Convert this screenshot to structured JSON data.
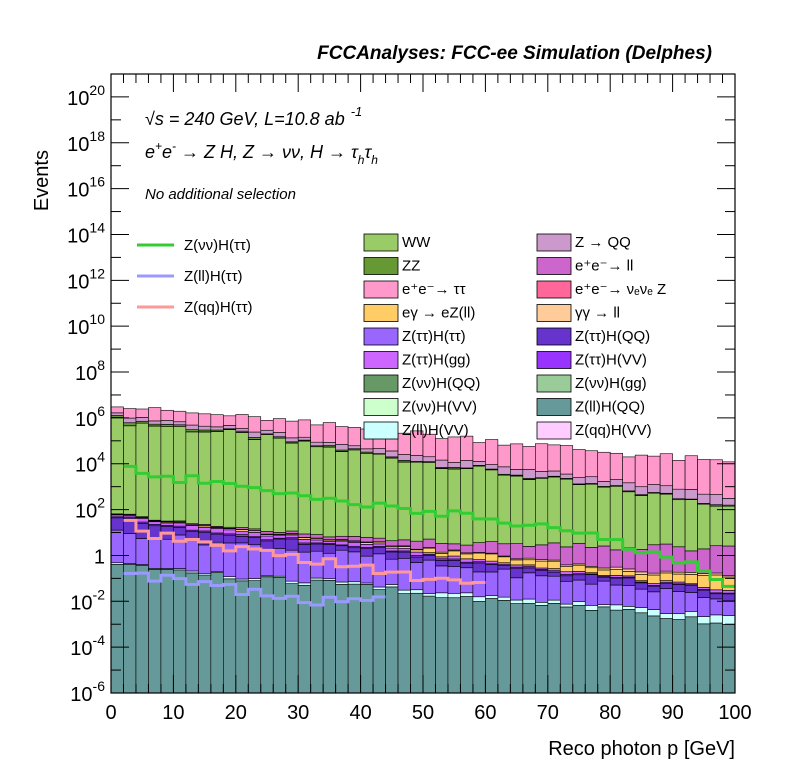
{
  "chart_data": {
    "type": "bar",
    "stacked": true,
    "title": "FCCAnalyses: FCC-ee Simulation (Delphes)",
    "xlabel": "Reco photon p [GeV]",
    "ylabel": "Events",
    "xlim": [
      0,
      100
    ],
    "ylim": [
      1e-06,
      1e+21
    ],
    "yscale": "log",
    "bin_width": 2,
    "x_ticks": [
      "0",
      "10",
      "20",
      "30",
      "40",
      "50",
      "60",
      "70",
      "80",
      "90",
      "100"
    ],
    "y_ticks": [
      {
        "value": 1e-06,
        "base": "10",
        "exp": "-6"
      },
      {
        "value": 0.0001,
        "base": "10",
        "exp": "-4"
      },
      {
        "value": 0.01,
        "base": "10",
        "exp": "-2"
      },
      {
        "value": 1,
        "base": "1",
        "exp": ""
      },
      {
        "value": 100.0,
        "base": "10",
        "exp": "2"
      },
      {
        "value": 10000.0,
        "base": "10",
        "exp": "4"
      },
      {
        "value": 1000000.0,
        "base": "10",
        "exp": "6"
      },
      {
        "value": 100000000.0,
        "base": "10",
        "exp": "8"
      },
      {
        "value": 10000000000.0,
        "base": "10",
        "exp": "10"
      },
      {
        "value": 1000000000000.0,
        "base": "10",
        "exp": "12"
      },
      {
        "value": 100000000000000.0,
        "base": "10",
        "exp": "14"
      },
      {
        "value": 1e+16,
        "base": "10",
        "exp": "16"
      },
      {
        "value": 1e+18,
        "base": "10",
        "exp": "18"
      },
      {
        "value": 1e+20,
        "base": "10",
        "exp": "20"
      }
    ],
    "annotations": {
      "energy_sqrt": "√s",
      "energy_rest": " = 240 GeV, L=10.8 ab",
      "energy_exp": "-1",
      "process_e1": "e",
      "process_sup1": "+",
      "process_e2": "e",
      "process_sup2": "-",
      "process_rest": " → Z H, Z  → νν, H  → τ",
      "process_sub1": "h",
      "process_tau2": "τ",
      "process_sub2": "h",
      "selection": "No additional selection"
    },
    "background_series": [
      {
        "name": "WW",
        "color": "#99cc66",
        "edges": [
          [
            0,
            800000.0
          ],
          [
            20,
            200000.0
          ],
          [
            40,
            30000.0
          ],
          [
            60,
            5000.0
          ],
          [
            80,
            800
          ],
          [
            100,
            150
          ]
        ]
      },
      {
        "name": "ZZ",
        "color": "#669933",
        "edges": [
          [
            0,
            200000.0
          ],
          [
            20,
            30000.0
          ],
          [
            40,
            3000.0
          ],
          [
            60,
            400
          ],
          [
            80,
            60
          ],
          [
            100,
            10
          ]
        ]
      },
      {
        "name": "e⁺e⁻→ ττ",
        "color": "#ff99cc",
        "edges": [
          [
            0,
            2000000.0
          ],
          [
            20,
            800000.0
          ],
          [
            40,
            300000.0
          ],
          [
            60,
            100000.0
          ],
          [
            80,
            30000.0
          ],
          [
            100,
            10000.0
          ]
        ]
      },
      {
        "name": "eγ  → eZ(ll)",
        "color": "#ffcc66",
        "edges": [
          [
            0,
            2
          ],
          [
            20,
            2
          ],
          [
            40,
            0.5
          ],
          [
            60,
            0.5
          ],
          [
            80,
            0.1
          ],
          [
            100,
            0.1
          ]
        ]
      },
      {
        "name": "Z(ττ)H(ττ)",
        "color": "#9966ff",
        "edges": [
          [
            0,
            10
          ],
          [
            20,
            3
          ],
          [
            40,
            1
          ],
          [
            60,
            0.2
          ],
          [
            80,
            0.05
          ],
          [
            100,
            0.01
          ]
        ]
      },
      {
        "name": "Z(ττ)H(gg)",
        "color": "#cc66ff",
        "edges": [
          [
            0,
            15
          ],
          [
            20,
            3
          ],
          [
            40,
            0.8
          ],
          [
            60,
            0.1
          ],
          [
            80,
            0.02
          ],
          [
            100,
            0.005
          ]
        ]
      },
      {
        "name": "Z(νν)H(QQ)",
        "color": "#669966",
        "edges": [
          [
            0,
            20
          ],
          [
            20,
            5
          ],
          [
            40,
            1
          ],
          [
            60,
            0.2
          ],
          [
            80,
            0.05
          ],
          [
            100,
            0.01
          ]
        ]
      },
      {
        "name": "Z(νν)H(VV)",
        "color": "#ccffcc",
        "edges": [
          [
            0,
            50
          ],
          [
            20,
            10
          ],
          [
            40,
            2
          ],
          [
            60,
            0.5
          ],
          [
            80,
            0.1
          ],
          [
            100,
            0.02
          ]
        ]
      },
      {
        "name": "Z(ll)H(VV)",
        "color": "#ccffff",
        "edges": [
          [
            0,
            0.05
          ],
          [
            20,
            0.02
          ],
          [
            40,
            0.01
          ],
          [
            60,
            0.005
          ],
          [
            80,
            0.002
          ],
          [
            100,
            0.001
          ]
        ]
      },
      {
        "name": "Z  → QQ",
        "color": "#cc99cc",
        "edges": [
          [
            0,
            500000.0
          ],
          [
            20,
            100000.0
          ],
          [
            40,
            20000.0
          ],
          [
            60,
            4000.0
          ],
          [
            80,
            800
          ],
          [
            100,
            200
          ]
        ]
      },
      {
        "name": "e⁺e⁻→ ll",
        "color": "#cc66cc",
        "edges": [
          [
            0,
            3
          ],
          [
            20,
            2
          ],
          [
            40,
            2
          ],
          [
            60,
            2
          ],
          [
            80,
            2
          ],
          [
            100,
            2
          ]
        ]
      },
      {
        "name": "e⁺e⁻→ νₑνₑ Z",
        "color": "#ff6699",
        "edges": [
          [
            0,
            500
          ],
          [
            20,
            100
          ],
          [
            40,
            20
          ],
          [
            60,
            5
          ],
          [
            80,
            1
          ],
          [
            100,
            0.2
          ]
        ]
      },
      {
        "name": "γγ  → ll",
        "color": "#ffcc99",
        "edges": [
          [
            0,
            1
          ],
          [
            20,
            0.5
          ],
          [
            40,
            0.2
          ],
          [
            60,
            0.1
          ],
          [
            80,
            0.05
          ],
          [
            100,
            0.02
          ]
        ]
      },
      {
        "name": "Z(ττ)H(QQ)",
        "color": "#6633cc",
        "edges": [
          [
            0,
            30
          ],
          [
            20,
            5
          ],
          [
            40,
            1
          ],
          [
            60,
            0.2
          ],
          [
            80,
            0.05
          ],
          [
            100,
            0.01
          ]
        ]
      },
      {
        "name": "Z(ττ)H(VV)",
        "color": "#9933ff",
        "edges": [
          [
            0,
            5
          ],
          [
            20,
            1
          ],
          [
            40,
            0.3
          ],
          [
            60,
            0.05
          ],
          [
            80,
            0.01
          ],
          [
            100,
            0.002
          ]
        ]
      },
      {
        "name": "Z(νν)H(gg)",
        "color": "#99cc99",
        "edges": [
          [
            0,
            10
          ],
          [
            20,
            2
          ],
          [
            40,
            0.5
          ],
          [
            60,
            0.1
          ],
          [
            80,
            0.02
          ],
          [
            100,
            0.005
          ]
        ]
      },
      {
        "name": "Z(ll)H(QQ)",
        "color": "#669999",
        "edges": [
          [
            0,
            0.5
          ],
          [
            20,
            0.1
          ],
          [
            40,
            0.05
          ],
          [
            60,
            0.01
          ],
          [
            80,
            0.005
          ],
          [
            100,
            0.001
          ]
        ]
      },
      {
        "name": "Z(qq)H(VV)",
        "color": "#ffccff",
        "edges": [
          [
            0,
            20
          ],
          [
            20,
            5
          ],
          [
            40,
            1
          ],
          [
            60,
            0.2
          ],
          [
            80,
            0.05
          ],
          [
            100,
            0.01
          ]
        ]
      }
    ],
    "stack_order": [
      16,
      8,
      4,
      13,
      14,
      5,
      3,
      12,
      10,
      0,
      6,
      15,
      7,
      17,
      11,
      1,
      9,
      2
    ],
    "signal_series": [
      {
        "name": "Z(qq)H(ττ)",
        "color": "#ff9999",
        "edges": [
          [
            2,
            30
          ],
          [
            6,
            8
          ],
          [
            20,
            2
          ],
          [
            30,
            0.8
          ],
          [
            40,
            0.3
          ],
          [
            50,
            0.1
          ],
          [
            60,
            0.05
          ]
        ]
      },
      {
        "name": "Z(ll)H(ττ)",
        "color": "#9999ff",
        "edges": [
          [
            2,
            0.2
          ],
          [
            8,
            0.1
          ],
          [
            16,
            0.05
          ],
          [
            24,
            0.02
          ],
          [
            34,
            0.01
          ],
          [
            44,
            0.01
          ]
        ]
      },
      {
        "name": "Z(νν)H(ττ)",
        "color": "#33cc33",
        "edges": [
          [
            2,
            6000.0
          ],
          [
            10,
            2500
          ],
          [
            20,
            1000
          ],
          [
            30,
            450
          ],
          [
            40,
            200
          ],
          [
            50,
            90
          ],
          [
            60,
            40
          ],
          [
            70,
            15
          ],
          [
            80,
            5
          ],
          [
            90,
            0.8
          ],
          [
            100,
            0.05
          ]
        ]
      }
    ],
    "legend_left": [
      2,
      1,
      0
    ],
    "legend_middle": [
      0,
      1,
      2,
      3,
      4,
      5,
      6,
      7,
      8
    ],
    "legend_right": [
      9,
      10,
      11,
      12,
      13,
      14,
      15,
      16,
      17
    ],
    "legend_placement": "inside top"
  }
}
